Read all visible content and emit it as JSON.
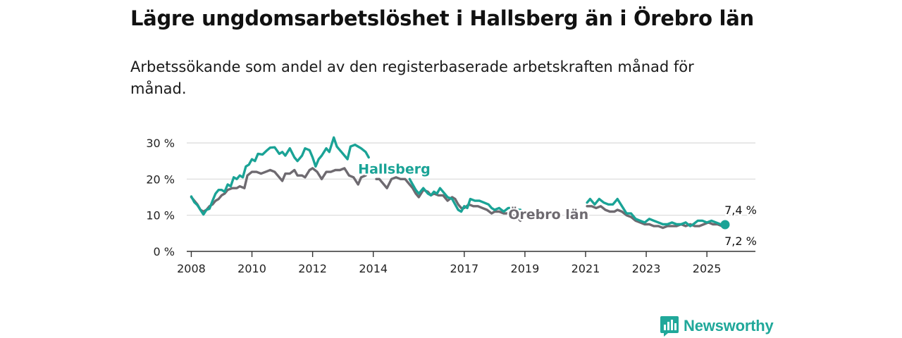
{
  "title": "Lägre ungdomsarbetslöshet i Hallsberg än i Örebro län",
  "subtitle": "Arbetssökande som andel av den registerbaserade arbetskraften månad för månad.",
  "brand": "Newsworthy",
  "colors": {
    "hallsberg": "#1aa396",
    "orebro": "#6e6a70",
    "grid": "#d9d9d9",
    "axis": "#333333"
  },
  "chart_data": {
    "type": "line",
    "title": "Lägre ungdomsarbetslöshet i Hallsberg än i Örebro län",
    "ylim": [
      0,
      30
    ],
    "xlim": [
      2007.85,
      2026.6
    ],
    "y_ticks": [
      0,
      10,
      20,
      30
    ],
    "y_tick_labels": [
      "0 %",
      "10 %",
      "20 %",
      "30 %"
    ],
    "x_ticks": [
      2008,
      2010,
      2012,
      2014,
      2017,
      2019,
      2021,
      2023,
      2025
    ],
    "x_tick_labels": [
      "2008",
      "2010",
      "2012",
      "2014",
      "2017",
      "2019",
      "2021",
      "2023",
      "2025"
    ],
    "grid": true,
    "annotations": {
      "hallsberg_last": "7,4 %",
      "orebro_last": "7,2 %"
    },
    "series": [
      {
        "name": "Hallsberg",
        "points": [
          [
            2008.0,
            15.2
          ],
          [
            2008.1,
            13.6
          ],
          [
            2008.2,
            12.8
          ],
          [
            2008.3,
            11.5
          ],
          [
            2008.4,
            10.2
          ],
          [
            2008.5,
            11.5
          ],
          [
            2008.6,
            11.8
          ],
          [
            2008.7,
            14.0
          ],
          [
            2008.8,
            16.0
          ],
          [
            2008.9,
            17.0
          ],
          [
            2009.0,
            17.0
          ],
          [
            2009.1,
            16.5
          ],
          [
            2009.2,
            18.5
          ],
          [
            2009.3,
            18.0
          ],
          [
            2009.4,
            20.5
          ],
          [
            2009.5,
            20.0
          ],
          [
            2009.6,
            21.0
          ],
          [
            2009.7,
            20.5
          ],
          [
            2009.8,
            23.5
          ],
          [
            2009.9,
            24.0
          ],
          [
            2010.0,
            25.5
          ],
          [
            2010.1,
            25.0
          ],
          [
            2010.2,
            27.0
          ],
          [
            2010.35,
            26.8
          ],
          [
            2010.5,
            28.0
          ],
          [
            2010.6,
            28.7
          ],
          [
            2010.75,
            28.8
          ],
          [
            2010.9,
            27.0
          ],
          [
            2011.0,
            27.5
          ],
          [
            2011.1,
            26.5
          ],
          [
            2011.25,
            28.5
          ],
          [
            2011.4,
            26.0
          ],
          [
            2011.5,
            25.0
          ],
          [
            2011.65,
            26.5
          ],
          [
            2011.75,
            28.5
          ],
          [
            2011.9,
            28.0
          ],
          [
            2012.0,
            26.0
          ],
          [
            2012.1,
            23.5
          ],
          [
            2012.2,
            25.5
          ],
          [
            2012.3,
            26.5
          ],
          [
            2012.45,
            28.5
          ],
          [
            2012.55,
            27.5
          ],
          [
            2012.7,
            31.5
          ],
          [
            2012.8,
            29.0
          ],
          [
            2012.9,
            28.0
          ],
          [
            2013.0,
            27.0
          ],
          [
            2013.15,
            25.5
          ],
          [
            2013.25,
            29.0
          ],
          [
            2013.4,
            29.5
          ],
          [
            2013.5,
            29.0
          ],
          [
            2013.6,
            28.5
          ],
          [
            2013.75,
            27.5
          ],
          [
            2013.85,
            26.0
          ],
          null,
          [
            2014.35,
            23.0
          ],
          [
            2014.45,
            21.5
          ],
          null,
          [
            2015.2,
            20.0
          ],
          [
            2015.3,
            18.5
          ],
          [
            2015.4,
            17.0
          ],
          [
            2015.5,
            16.0
          ],
          [
            2015.65,
            17.5
          ],
          [
            2015.8,
            16.0
          ],
          [
            2015.9,
            15.5
          ],
          [
            2016.0,
            16.5
          ],
          [
            2016.1,
            16.0
          ],
          [
            2016.2,
            17.5
          ],
          [
            2016.3,
            16.5
          ],
          [
            2016.45,
            15.0
          ],
          [
            2016.6,
            14.5
          ],
          [
            2016.7,
            13.0
          ],
          [
            2016.8,
            11.5
          ],
          [
            2016.9,
            11.0
          ],
          [
            2017.0,
            12.5
          ],
          [
            2017.1,
            12.0
          ],
          [
            2017.2,
            14.5
          ],
          [
            2017.35,
            14.0
          ],
          [
            2017.5,
            14.0
          ],
          [
            2017.65,
            13.5
          ],
          [
            2017.8,
            13.0
          ],
          [
            2017.9,
            12.0
          ],
          [
            2018.0,
            11.5
          ],
          [
            2018.15,
            12.0
          ],
          [
            2018.3,
            11.0
          ],
          [
            2018.45,
            12.0
          ],
          [
            2018.6,
            12.0
          ],
          [
            2018.75,
            11.5
          ],
          [
            2018.85,
            11.5
          ],
          null,
          [
            2021.05,
            13.5
          ],
          [
            2021.15,
            14.5
          ],
          [
            2021.3,
            13.0
          ],
          [
            2021.45,
            14.5
          ],
          [
            2021.6,
            13.5
          ],
          [
            2021.75,
            13.0
          ],
          [
            2021.9,
            13.0
          ],
          [
            2022.05,
            14.5
          ],
          [
            2022.2,
            12.5
          ],
          [
            2022.35,
            10.5
          ],
          [
            2022.5,
            10.5
          ],
          [
            2022.65,
            9.0
          ],
          [
            2022.8,
            8.5
          ],
          [
            2022.95,
            8.0
          ],
          [
            2023.1,
            9.0
          ],
          [
            2023.25,
            8.5
          ],
          [
            2023.4,
            8.0
          ],
          [
            2023.55,
            7.5
          ],
          [
            2023.7,
            7.5
          ],
          [
            2023.85,
            8.0
          ],
          [
            2024.0,
            7.5
          ],
          [
            2024.15,
            7.5
          ],
          [
            2024.3,
            8.0
          ],
          [
            2024.45,
            7.0
          ],
          [
            2024.55,
            7.5
          ],
          [
            2024.7,
            8.5
          ],
          [
            2024.85,
            8.5
          ],
          [
            2025.0,
            8.0
          ],
          [
            2025.15,
            8.5
          ],
          [
            2025.3,
            8.0
          ],
          [
            2025.45,
            7.5
          ],
          [
            2025.6,
            7.4
          ]
        ]
      },
      {
        "name": "Örebro län",
        "points": [
          [
            2008.0,
            15.0
          ],
          [
            2008.1,
            14.0
          ],
          [
            2008.2,
            13.0
          ],
          [
            2008.3,
            11.5
          ],
          [
            2008.4,
            11.0
          ],
          [
            2008.5,
            11.5
          ],
          [
            2008.6,
            12.5
          ],
          [
            2008.7,
            13.0
          ],
          [
            2008.8,
            14.0
          ],
          [
            2008.9,
            14.5
          ],
          [
            2009.0,
            15.5
          ],
          [
            2009.1,
            16.0
          ],
          [
            2009.2,
            17.0
          ],
          [
            2009.35,
            17.5
          ],
          [
            2009.5,
            17.5
          ],
          [
            2009.6,
            18.0
          ],
          [
            2009.75,
            17.5
          ],
          [
            2009.85,
            21.0
          ],
          [
            2010.0,
            22.0
          ],
          [
            2010.15,
            22.0
          ],
          [
            2010.3,
            21.5
          ],
          [
            2010.45,
            22.0
          ],
          [
            2010.6,
            22.5
          ],
          [
            2010.75,
            22.0
          ],
          [
            2010.9,
            20.5
          ],
          [
            2011.0,
            19.5
          ],
          [
            2011.1,
            21.5
          ],
          [
            2011.25,
            21.5
          ],
          [
            2011.4,
            22.5
          ],
          [
            2011.5,
            21.0
          ],
          [
            2011.65,
            21.0
          ],
          [
            2011.75,
            20.5
          ],
          [
            2011.9,
            22.5
          ],
          [
            2012.0,
            23.0
          ],
          [
            2012.15,
            22.0
          ],
          [
            2012.3,
            20.0
          ],
          [
            2012.45,
            22.0
          ],
          [
            2012.6,
            22.0
          ],
          [
            2012.75,
            22.5
          ],
          [
            2012.9,
            22.5
          ],
          [
            2013.05,
            23.0
          ],
          [
            2013.2,
            21.0
          ],
          [
            2013.35,
            20.5
          ],
          [
            2013.5,
            18.5
          ],
          [
            2013.6,
            20.5
          ],
          [
            2013.75,
            21.0
          ],
          null,
          [
            2014.1,
            20.0
          ],
          [
            2014.2,
            20.0
          ],
          [
            2014.35,
            18.5
          ],
          [
            2014.45,
            17.5
          ],
          [
            2014.6,
            20.0
          ],
          [
            2014.75,
            20.5
          ],
          [
            2014.9,
            20.0
          ],
          [
            2015.05,
            20.0
          ],
          [
            2015.15,
            19.0
          ],
          [
            2015.3,
            17.5
          ],
          [
            2015.4,
            16.0
          ],
          [
            2015.5,
            15.0
          ],
          [
            2015.65,
            17.0
          ],
          [
            2015.8,
            16.5
          ],
          [
            2015.9,
            15.5
          ],
          [
            2016.0,
            16.0
          ],
          [
            2016.15,
            15.5
          ],
          [
            2016.3,
            15.5
          ],
          [
            2016.45,
            14.0
          ],
          [
            2016.6,
            15.0
          ],
          [
            2016.7,
            14.5
          ],
          [
            2016.8,
            13.0
          ],
          [
            2016.9,
            12.0
          ],
          [
            2017.0,
            12.0
          ],
          [
            2017.15,
            13.0
          ],
          [
            2017.3,
            12.5
          ],
          [
            2017.45,
            12.5
          ],
          [
            2017.6,
            12.0
          ],
          [
            2017.75,
            11.5
          ],
          [
            2017.9,
            10.5
          ],
          [
            2018.0,
            11.0
          ],
          [
            2018.15,
            11.0
          ],
          [
            2018.3,
            10.5
          ],
          [
            2018.45,
            10.5
          ],
          [
            2018.6,
            10.0
          ],
          [
            2018.75,
            9.5
          ],
          [
            2018.85,
            8.5
          ],
          null,
          [
            2021.05,
            12.5
          ],
          [
            2021.2,
            12.5
          ],
          [
            2021.35,
            12.0
          ],
          [
            2021.5,
            12.5
          ],
          [
            2021.65,
            11.5
          ],
          [
            2021.8,
            11.0
          ],
          [
            2021.95,
            11.0
          ],
          [
            2022.05,
            11.5
          ],
          [
            2022.2,
            11.0
          ],
          [
            2022.35,
            10.0
          ],
          [
            2022.5,
            9.5
          ],
          [
            2022.65,
            8.5
          ],
          [
            2022.8,
            8.0
          ],
          [
            2022.95,
            7.5
          ],
          [
            2023.1,
            7.5
          ],
          [
            2023.25,
            7.0
          ],
          [
            2023.4,
            7.0
          ],
          [
            2023.55,
            6.5
          ],
          [
            2023.7,
            7.0
          ],
          [
            2023.85,
            7.0
          ],
          [
            2024.0,
            7.0
          ],
          [
            2024.15,
            7.5
          ],
          [
            2024.3,
            7.0
          ],
          [
            2024.45,
            7.5
          ],
          [
            2024.6,
            7.0
          ],
          [
            2024.75,
            7.0
          ],
          [
            2024.9,
            7.5
          ],
          [
            2025.05,
            8.0
          ],
          [
            2025.2,
            7.5
          ],
          [
            2025.35,
            7.5
          ],
          [
            2025.5,
            7.0
          ],
          [
            2025.6,
            7.2
          ]
        ]
      }
    ]
  }
}
